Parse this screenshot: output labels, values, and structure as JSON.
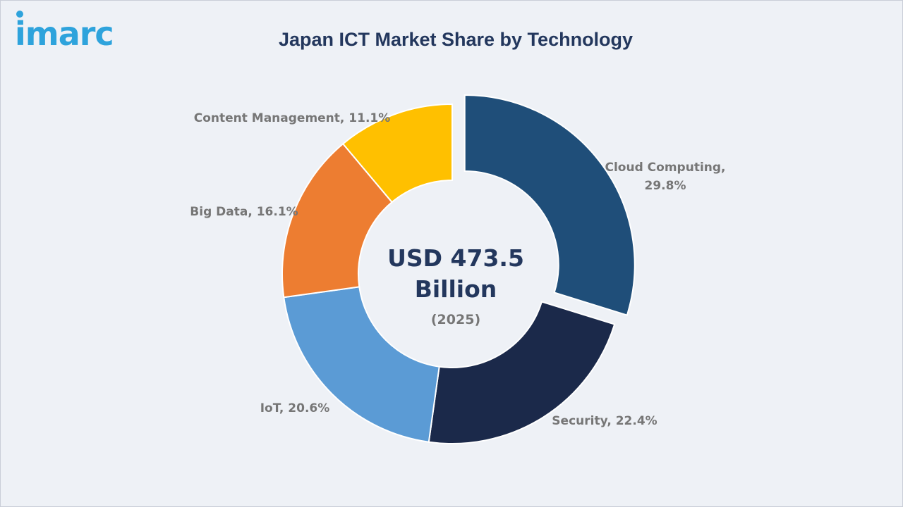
{
  "brand": {
    "logo_text": "imarc"
  },
  "chart_data": {
    "type": "pie",
    "title": "Japan ICT Market Share by Technology",
    "center": {
      "value_line1": "USD 473.5",
      "value_line2": "Billion",
      "year": "(2025)"
    },
    "slices": [
      {
        "name": "Cloud Computing",
        "value": 29.8,
        "label_line1": "Cloud Computing,",
        "label_line2": "29.8%",
        "color": "#1f4e79",
        "exploded": true
      },
      {
        "name": "Security",
        "value": 22.4,
        "label_line1": "Security, 22.4%",
        "label_line2": "",
        "color": "#1b294a",
        "exploded": false
      },
      {
        "name": "IoT",
        "value": 20.6,
        "label_line1": "IoT, 20.6%",
        "label_line2": "",
        "color": "#5b9bd5",
        "exploded": false
      },
      {
        "name": "Big Data",
        "value": 16.1,
        "label_line1": "Big Data, 16.1%",
        "label_line2": "",
        "color": "#ed7d31",
        "exploded": false
      },
      {
        "name": "Content Management",
        "value": 11.1,
        "label_line1": "Content Management, 11.1%",
        "label_line2": "",
        "color": "#ffc000",
        "exploded": false
      }
    ]
  }
}
